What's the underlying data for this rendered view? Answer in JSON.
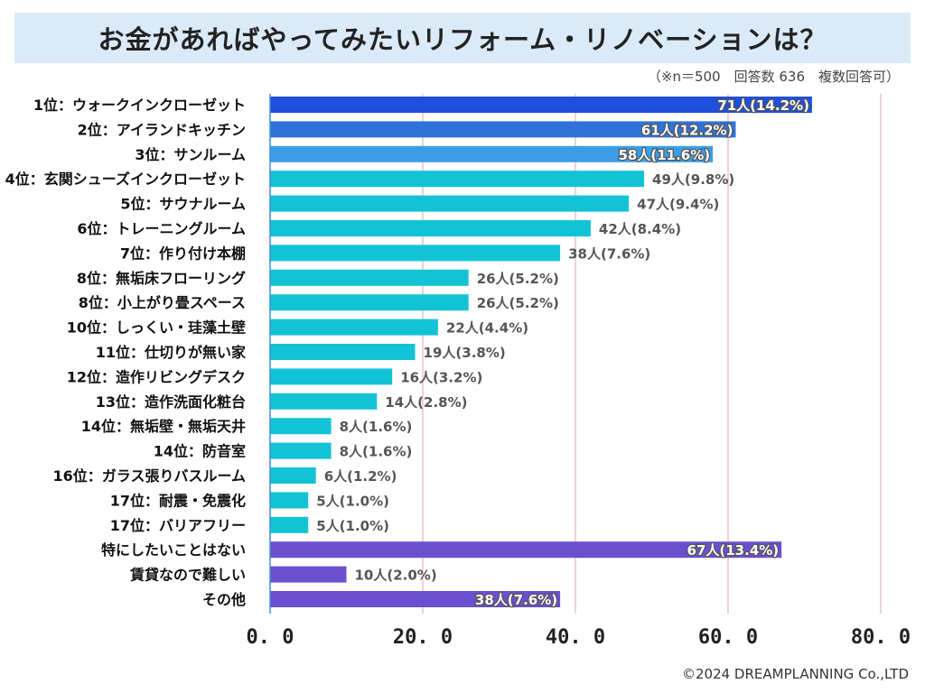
{
  "title": "お金があればやってみたいリフォーム・リノベーションは？",
  "note": "（※n＝500　回答数 636　複数回答可）",
  "footer": "©2024 DREAMPLANNING Co.,LTD",
  "chart_data": {
    "type": "bar",
    "orientation": "horizontal",
    "title": "お金があればやってみたいリフォーム・リノベーションは？",
    "xlim": [
      0,
      80
    ],
    "x_ticks": [
      0,
      20,
      40,
      60,
      80
    ],
    "x_tick_labels": [
      "0. 0",
      "20. 0",
      "40. 0",
      "60. 0",
      "80. 0"
    ],
    "xlabel": "",
    "ylabel": "",
    "categories": [
      "1位：ウォークインクローゼット",
      "2位：アイランドキッチン",
      "3位：サンルーム",
      "4位：玄関シューズインクローゼット",
      "5位：サウナルーム",
      "6位：トレーニングルーム",
      "7位：作り付け本棚",
      "8位：無垢床フローリング",
      "8位：小上がり畳スペース",
      "10位：しっくい・珪藻土壁",
      "11位：仕切りが無い家",
      "12位：造作リビングデスク",
      "13位：造作洗面化粧台",
      "14位：無垢壁・無垢天井",
      "14位：防音室",
      "16位：ガラス張りバスルーム",
      "17位：耐震・免震化",
      "17位：バリアフリー",
      "特にしたいことはない",
      "賃貸なので難しい",
      "その他"
    ],
    "values": [
      71,
      61,
      58,
      49,
      47,
      42,
      38,
      26,
      26,
      22,
      19,
      16,
      14,
      8,
      8,
      6,
      5,
      5,
      67,
      10,
      38
    ],
    "value_labels": [
      "71人(14.2%)",
      "61人(12.2%)",
      "58人(11.6%)",
      "49人(9.8%)",
      "47人(9.4%)",
      "42人(8.4%)",
      "38人(7.6%)",
      "26人(5.2%)",
      "26人(5.2%)",
      "22人(4.4%)",
      "19人(3.8%)",
      "16人(3.2%)",
      "14人(2.8%)",
      "8人(1.6%)",
      "8人(1.6%)",
      "6人(1.2%)",
      "5人(1.0%)",
      "5人(1.0%)",
      "67人(13.4%)",
      "10人(2.0%)",
      "38人(7.6%)"
    ],
    "label_inside": [
      true,
      true,
      true,
      false,
      false,
      false,
      false,
      false,
      false,
      false,
      false,
      false,
      false,
      false,
      false,
      false,
      false,
      false,
      true,
      false,
      true
    ],
    "bar_colors": [
      "#1f4fdc",
      "#2f73d8",
      "#3b9de6",
      "#12c3d6",
      "#12c3d6",
      "#12c3d6",
      "#12c3d6",
      "#12c3d6",
      "#12c3d6",
      "#12c3d6",
      "#12c3d6",
      "#12c3d6",
      "#12c3d6",
      "#12c3d6",
      "#12c3d6",
      "#12c3d6",
      "#12c3d6",
      "#12c3d6",
      "#6a4fcf",
      "#6a4fcf",
      "#6a4fcf"
    ],
    "grid": true,
    "grid_color": "#e3a0b5"
  }
}
